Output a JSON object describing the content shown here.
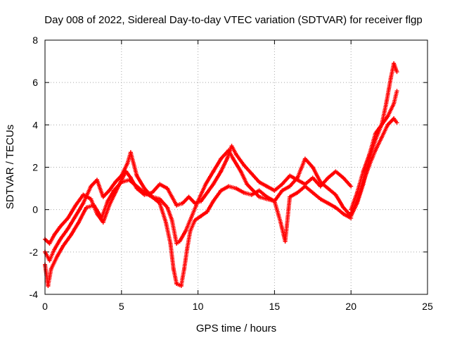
{
  "chart_data": {
    "type": "scatter",
    "title": "Day 008 of 2022, Sidereal Day-to-day VTEC variation (SDTVAR) for receiver flgp",
    "xlabel": "GPS time / hours",
    "ylabel": "SDTVAR / TECUs",
    "xlim": [
      0,
      25
    ],
    "ylim": [
      -4,
      8
    ],
    "xticks": [
      0,
      5,
      10,
      15,
      20,
      25
    ],
    "yticks": [
      -4,
      -2,
      0,
      2,
      4,
      6,
      8
    ],
    "grid": true,
    "marker": "plus",
    "color": "#ff0000",
    "series": [
      {
        "name": "track-1",
        "points": [
          [
            0,
            -1.4
          ],
          [
            0.3,
            -1.6
          ],
          [
            0.6,
            -1.2
          ],
          [
            1.0,
            -0.8
          ],
          [
            1.5,
            -0.4
          ],
          [
            2.0,
            0.2
          ],
          [
            2.5,
            0.7
          ],
          [
            3.0,
            0.5
          ],
          [
            3.4,
            -0.2
          ],
          [
            3.8,
            -0.6
          ],
          [
            4.2,
            0.2
          ],
          [
            4.6,
            0.8
          ],
          [
            5.0,
            1.4
          ],
          [
            5.3,
            1.8
          ],
          [
            5.6,
            1.5
          ],
          [
            6.0,
            1.0
          ],
          [
            6.5,
            0.7
          ],
          [
            7.0,
            0.8
          ],
          [
            7.5,
            1.2
          ],
          [
            8.0,
            1.0
          ],
          [
            8.3,
            0.6
          ],
          [
            8.6,
            0.2
          ],
          [
            9.0,
            0.3
          ],
          [
            9.4,
            0.6
          ],
          [
            9.8,
            0.3
          ],
          [
            10.2,
            0.4
          ],
          [
            10.6,
            0.8
          ],
          [
            11.0,
            1.2
          ],
          [
            11.5,
            1.8
          ],
          [
            11.9,
            2.4
          ],
          [
            12.2,
            3.0
          ],
          [
            12.5,
            2.6
          ],
          [
            13.0,
            2.1
          ],
          [
            13.5,
            1.7
          ],
          [
            14.0,
            1.3
          ],
          [
            14.5,
            1.1
          ],
          [
            15.0,
            0.9
          ],
          [
            15.5,
            1.2
          ],
          [
            16.0,
            1.6
          ],
          [
            16.5,
            1.4
          ],
          [
            17.0,
            1.2
          ],
          [
            17.5,
            1.5
          ],
          [
            18.0,
            1.1
          ],
          [
            18.5,
            1.5
          ],
          [
            19.0,
            1.8
          ],
          [
            19.5,
            1.5
          ],
          [
            20.0,
            1.1
          ]
        ]
      },
      {
        "name": "track-2",
        "points": [
          [
            0,
            -2.0
          ],
          [
            0.3,
            -2.4
          ],
          [
            0.6,
            -1.9
          ],
          [
            1.0,
            -1.4
          ],
          [
            1.5,
            -0.9
          ],
          [
            2.0,
            -0.3
          ],
          [
            2.5,
            0.3
          ],
          [
            3.0,
            1.1
          ],
          [
            3.4,
            1.4
          ],
          [
            3.8,
            0.6
          ],
          [
            4.2,
            0.9
          ],
          [
            4.6,
            1.3
          ],
          [
            5.0,
            1.6
          ],
          [
            5.4,
            2.2
          ],
          [
            5.6,
            2.7
          ],
          [
            6.0,
            1.6
          ],
          [
            6.5,
            1.0
          ],
          [
            7.0,
            0.6
          ],
          [
            7.5,
            0.5
          ],
          [
            8.0,
            0.1
          ],
          [
            8.3,
            -0.5
          ],
          [
            8.6,
            -1.6
          ],
          [
            8.8,
            -1.5
          ],
          [
            9.2,
            -1.0
          ],
          [
            9.6,
            -0.3
          ],
          [
            10.0,
            0.4
          ],
          [
            10.5,
            1.2
          ],
          [
            11.0,
            1.8
          ],
          [
            11.5,
            2.4
          ],
          [
            12.0,
            2.8
          ],
          [
            12.3,
            2.4
          ],
          [
            12.8,
            1.8
          ],
          [
            13.2,
            1.2
          ],
          [
            13.6,
            0.9
          ],
          [
            14.0,
            0.6
          ],
          [
            14.5,
            0.5
          ],
          [
            15.0,
            0.4
          ],
          [
            15.5,
            0.9
          ],
          [
            16.0,
            1.1
          ],
          [
            16.5,
            1.5
          ],
          [
            17.0,
            2.4
          ],
          [
            17.5,
            2.0
          ],
          [
            18.0,
            1.3
          ],
          [
            18.5,
            1.0
          ],
          [
            19.0,
            0.7
          ],
          [
            19.5,
            0.1
          ],
          [
            20.0,
            -0.3
          ]
        ]
      },
      {
        "name": "track-3",
        "points": [
          [
            0,
            -2.6
          ],
          [
            0.2,
            -3.6
          ],
          [
            0.4,
            -2.8
          ],
          [
            0.8,
            -2.2
          ],
          [
            1.2,
            -1.7
          ],
          [
            1.7,
            -1.2
          ],
          [
            2.2,
            -0.6
          ],
          [
            2.7,
            0.1
          ],
          [
            3.2,
            0.2
          ],
          [
            3.7,
            -0.4
          ],
          [
            4.1,
            0.4
          ],
          [
            4.5,
            0.9
          ],
          [
            5.0,
            1.3
          ],
          [
            5.5,
            1.4
          ],
          [
            6.0,
            1.1
          ],
          [
            6.5,
            0.8
          ],
          [
            7.0,
            0.6
          ],
          [
            7.5,
            0.3
          ],
          [
            7.9,
            -0.6
          ],
          [
            8.2,
            -1.6
          ],
          [
            8.4,
            -2.8
          ],
          [
            8.6,
            -3.5
          ],
          [
            8.9,
            -3.6
          ],
          [
            9.1,
            -2.8
          ],
          [
            9.3,
            -1.8
          ],
          [
            9.5,
            -1.0
          ],
          [
            9.8,
            -0.5
          ],
          [
            10.2,
            -0.3
          ],
          [
            10.6,
            -0.1
          ],
          [
            11.0,
            0.4
          ],
          [
            11.5,
            0.9
          ],
          [
            12.0,
            1.1
          ],
          [
            12.5,
            1.0
          ],
          [
            13.0,
            0.8
          ],
          [
            13.5,
            0.7
          ],
          [
            14.0,
            0.9
          ],
          [
            14.5,
            0.6
          ],
          [
            15.0,
            0.4
          ],
          [
            15.4,
            -0.6
          ],
          [
            15.7,
            -1.5
          ],
          [
            16.0,
            0.6
          ],
          [
            16.5,
            0.8
          ],
          [
            17.0,
            1.1
          ],
          [
            17.5,
            0.8
          ],
          [
            18.0,
            0.5
          ],
          [
            18.5,
            0.3
          ],
          [
            19.0,
            0.1
          ],
          [
            19.5,
            -0.2
          ],
          [
            20.0,
            -0.4
          ]
        ]
      },
      {
        "name": "track-4",
        "points": [
          [
            20.0,
            -0.3
          ],
          [
            20.4,
            0.3
          ],
          [
            20.8,
            1.2
          ],
          [
            21.2,
            2.4
          ],
          [
            21.6,
            3.3
          ],
          [
            22.0,
            4.0
          ],
          [
            22.3,
            5.0
          ],
          [
            22.6,
            6.2
          ],
          [
            22.8,
            6.9
          ],
          [
            23.0,
            6.5
          ]
        ]
      },
      {
        "name": "track-5",
        "points": [
          [
            20.0,
            0.0
          ],
          [
            20.4,
            0.8
          ],
          [
            20.8,
            1.8
          ],
          [
            21.2,
            2.6
          ],
          [
            21.6,
            3.6
          ],
          [
            22.0,
            4.0
          ],
          [
            22.4,
            4.4
          ],
          [
            22.8,
            5.0
          ],
          [
            23.0,
            5.6
          ]
        ]
      },
      {
        "name": "track-6",
        "points": [
          [
            20.0,
            -0.2
          ],
          [
            20.4,
            0.4
          ],
          [
            20.8,
            1.3
          ],
          [
            21.2,
            2.1
          ],
          [
            21.6,
            2.8
          ],
          [
            22.0,
            3.4
          ],
          [
            22.4,
            4.0
          ],
          [
            22.8,
            4.3
          ],
          [
            23.0,
            4.1
          ]
        ]
      }
    ]
  }
}
